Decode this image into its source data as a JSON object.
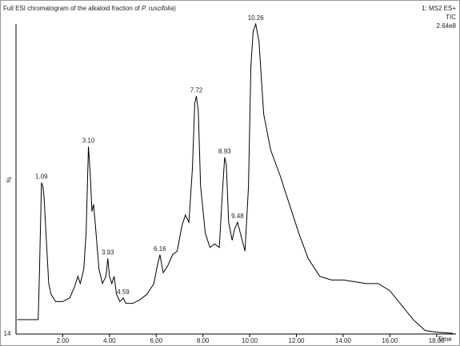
{
  "chart_data": {
    "type": "line",
    "title": [
      "Full ESI chromatogram of the alkaloid fraction of ",
      "P. ruscifolia",
      ")"
    ],
    "info": [
      "1: MS2 ES+",
      "TIC",
      "2.64e8"
    ],
    "ylabel": "%",
    "xlabel": "Time",
    "color": "#000000",
    "x": [
      0.05,
      0.95,
      1.0,
      1.09,
      1.15,
      1.2,
      1.3,
      1.4,
      1.5,
      1.7,
      2.0,
      2.3,
      2.5,
      2.65,
      2.75,
      2.9,
      3.0,
      3.1,
      3.18,
      3.25,
      3.32,
      3.4,
      3.55,
      3.7,
      3.85,
      3.93,
      4.0,
      4.1,
      4.2,
      4.3,
      4.45,
      4.59,
      4.7,
      5.0,
      5.3,
      5.6,
      5.9,
      6.05,
      6.16,
      6.3,
      6.5,
      6.7,
      6.9,
      7.1,
      7.25,
      7.4,
      7.55,
      7.65,
      7.72,
      7.8,
      7.9,
      8.1,
      8.3,
      8.5,
      8.7,
      8.85,
      8.93,
      9.0,
      9.1,
      9.25,
      9.35,
      9.48,
      9.6,
      9.8,
      9.95,
      10.05,
      10.15,
      10.26,
      10.4,
      10.6,
      10.9,
      11.3,
      11.7,
      12.1,
      12.5,
      13.0,
      13.5,
      14.0,
      14.5,
      15.0,
      15.5,
      16.0,
      16.5,
      17.0,
      17.5,
      18.0,
      18.7
    ],
    "values": [
      18,
      18,
      30,
      56,
      55,
      52,
      40,
      28,
      25,
      23,
      23,
      24,
      27,
      30,
      28,
      32,
      42,
      66,
      58,
      48,
      50,
      44,
      32,
      28,
      30,
      35,
      30,
      28,
      30,
      25,
      23,
      24,
      22.5,
      22.5,
      23.5,
      25,
      28,
      33,
      36,
      31,
      33,
      36,
      37,
      44,
      47,
      45,
      60,
      78,
      80,
      76,
      55,
      42,
      38,
      39,
      38,
      55,
      63,
      61,
      45,
      40,
      43,
      45,
      42,
      37,
      55,
      88,
      98,
      100,
      95,
      75,
      65,
      58,
      50,
      42,
      35,
      30,
      29,
      29,
      28.5,
      28,
      28,
      26,
      22,
      18,
      15,
      14.5,
      14.2
    ],
    "annotations": [
      {
        "value": 1.09,
        "label": "1.09"
      },
      {
        "value": 3.1,
        "label": "3.10"
      },
      {
        "value": 3.93,
        "label": "3.93"
      },
      {
        "value": 4.59,
        "label": "4.59"
      },
      {
        "value": 6.16,
        "label": "6.16"
      },
      {
        "value": 7.72,
        "label": "7.72"
      },
      {
        "value": 8.93,
        "label": "8.93"
      },
      {
        "value": 9.48,
        "label": "9.48"
      },
      {
        "value": 10.26,
        "label": "10.26"
      }
    ],
    "xlim": [
      0,
      18.83
    ],
    "ylim": [
      {
        "value": 14,
        "label": "14"
      },
      100
    ],
    "xticks": [
      {
        "value": 2,
        "label": "2.00"
      },
      {
        "value": 4,
        "label": "4.00"
      },
      {
        "value": 6,
        "label": "6.00"
      },
      {
        "value": 8,
        "label": "8.00"
      },
      {
        "value": 10,
        "label": "10.00"
      },
      {
        "value": 12,
        "label": "12.00"
      },
      {
        "value": 14,
        "label": "14.00"
      },
      {
        "value": 16,
        "label": "16.00"
      },
      {
        "value": 18,
        "label": "18.00"
      }
    ]
  }
}
